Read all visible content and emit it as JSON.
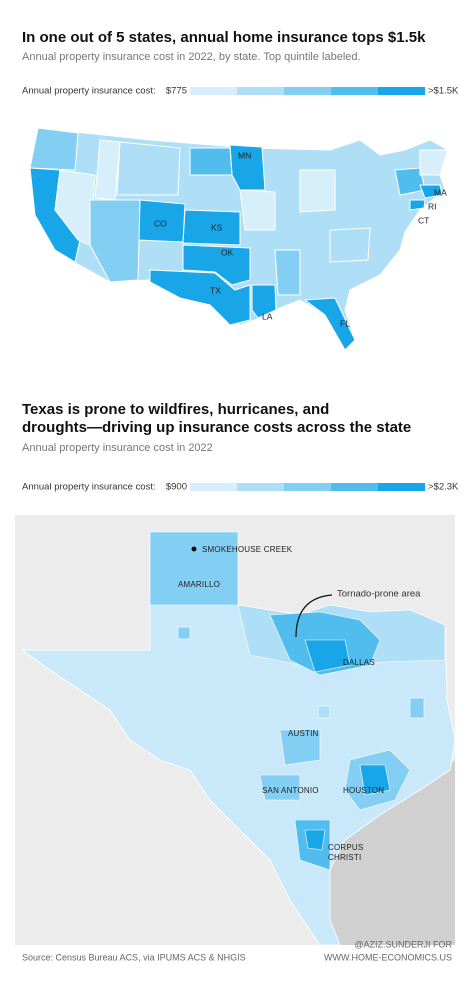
{
  "map1": {
    "title": "In one out of 5 states, annual home insurance tops $1.5k",
    "subtitle": "Annual property insurance cost in 2022, by state. Top quintile labeled.",
    "legend": {
      "label": "Annual property insurance cost:",
      "min": "$775",
      "max": ">$1.5K",
      "colors": [
        "#d6effb",
        "#aedff7",
        "#83cff3",
        "#50bdee",
        "#19a6e8"
      ]
    },
    "labels": [
      "MN",
      "MA",
      "RI",
      "CT",
      "CO",
      "KS",
      "OK",
      "TX",
      "LA",
      "FL"
    ]
  },
  "map2": {
    "title": [
      "Texas is prone to wildfires, hurricanes, and",
      "droughts—driving up insurance costs across the state"
    ],
    "subtitle": "Annual property insurance cost in 2022",
    "legend": {
      "label": "Annual property insurance cost:",
      "min": "$900",
      "max": ">$2.3K",
      "colors": [
        "#d6effb",
        "#aedff7",
        "#83cff3",
        "#50bdee",
        "#19a6e8"
      ]
    },
    "labels": {
      "fire": "SMOKEHOUSE CREEK",
      "amarillo": "AMARILLO",
      "tornado": "Tornado-prone area",
      "dallas": "DALLAS",
      "austin": "AUSTIN",
      "san_antonio": "SAN ANTONIO",
      "houston": "HOUSTON",
      "corpus": [
        "CORPUS",
        "CHRISTI"
      ]
    }
  },
  "footer": {
    "source": "Source: Census Bureau ACS, via IPUMS ACS & NHGIS",
    "credit": [
      "@AZIZ.SUNDERJI FOR",
      "WWW.HOME-ECONOMICS.US"
    ]
  }
}
